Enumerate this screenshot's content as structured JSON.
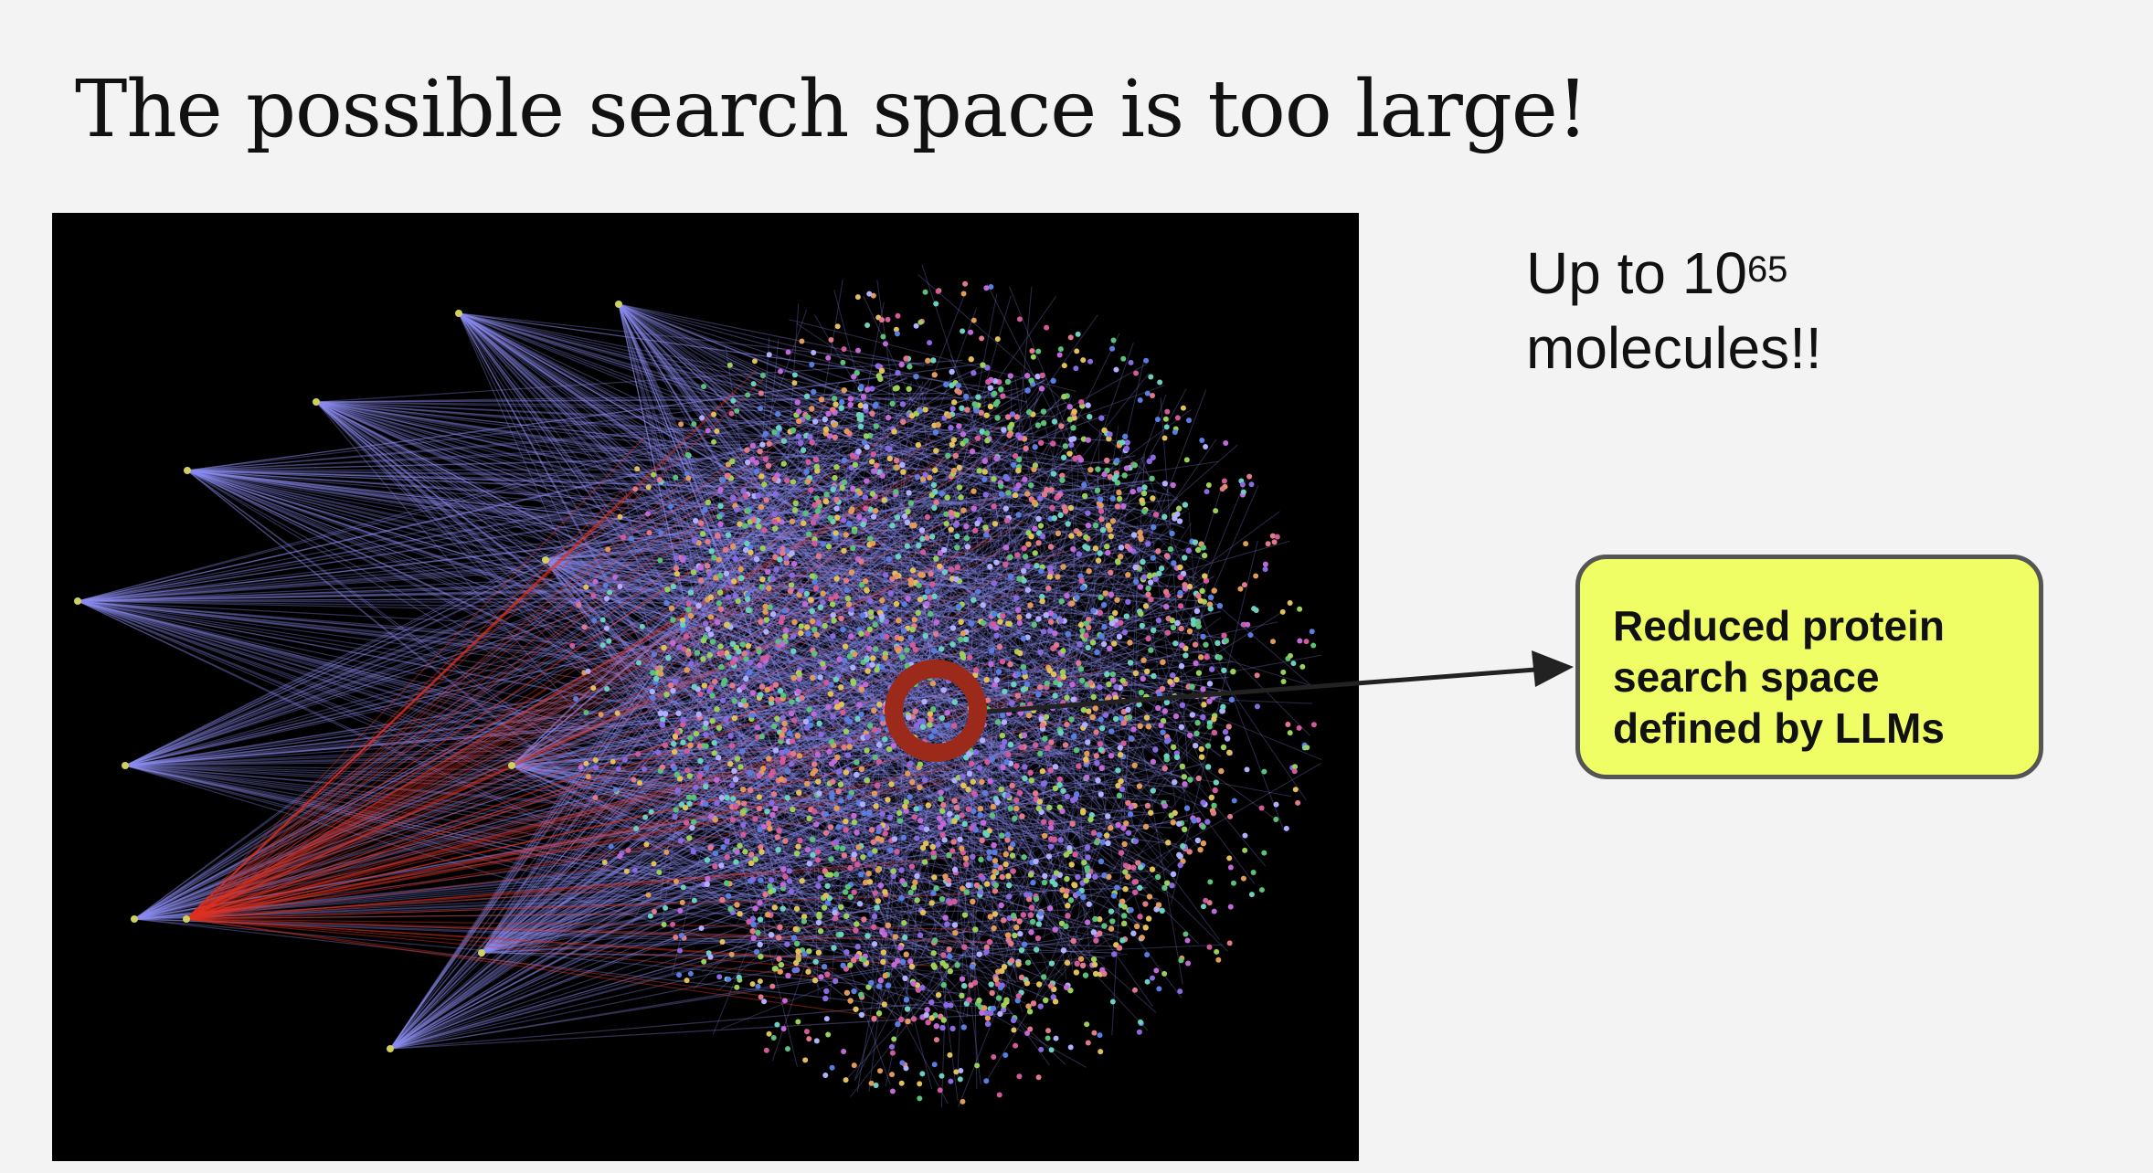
{
  "slide": {
    "title": "The possible search space is too large!",
    "count_prefix": "Up to 10",
    "count_exponent": "65",
    "count_suffix": "molecules!!",
    "callout_text": "Reduced protein search space defined by LLMs"
  },
  "colors": {
    "background": "#f3f3f3",
    "network_background": "#000000",
    "edge_main": "#8c8cf0",
    "edge_highlight": "#e0301e",
    "ring": "#9b2a1a",
    "callout_fill": "#eefe64",
    "callout_border": "#555555",
    "arrow": "#222222"
  },
  "icons": {
    "network": "protein-interaction-network-graphic",
    "ring": "highlight-ring",
    "arrow": "pointer-arrow"
  }
}
